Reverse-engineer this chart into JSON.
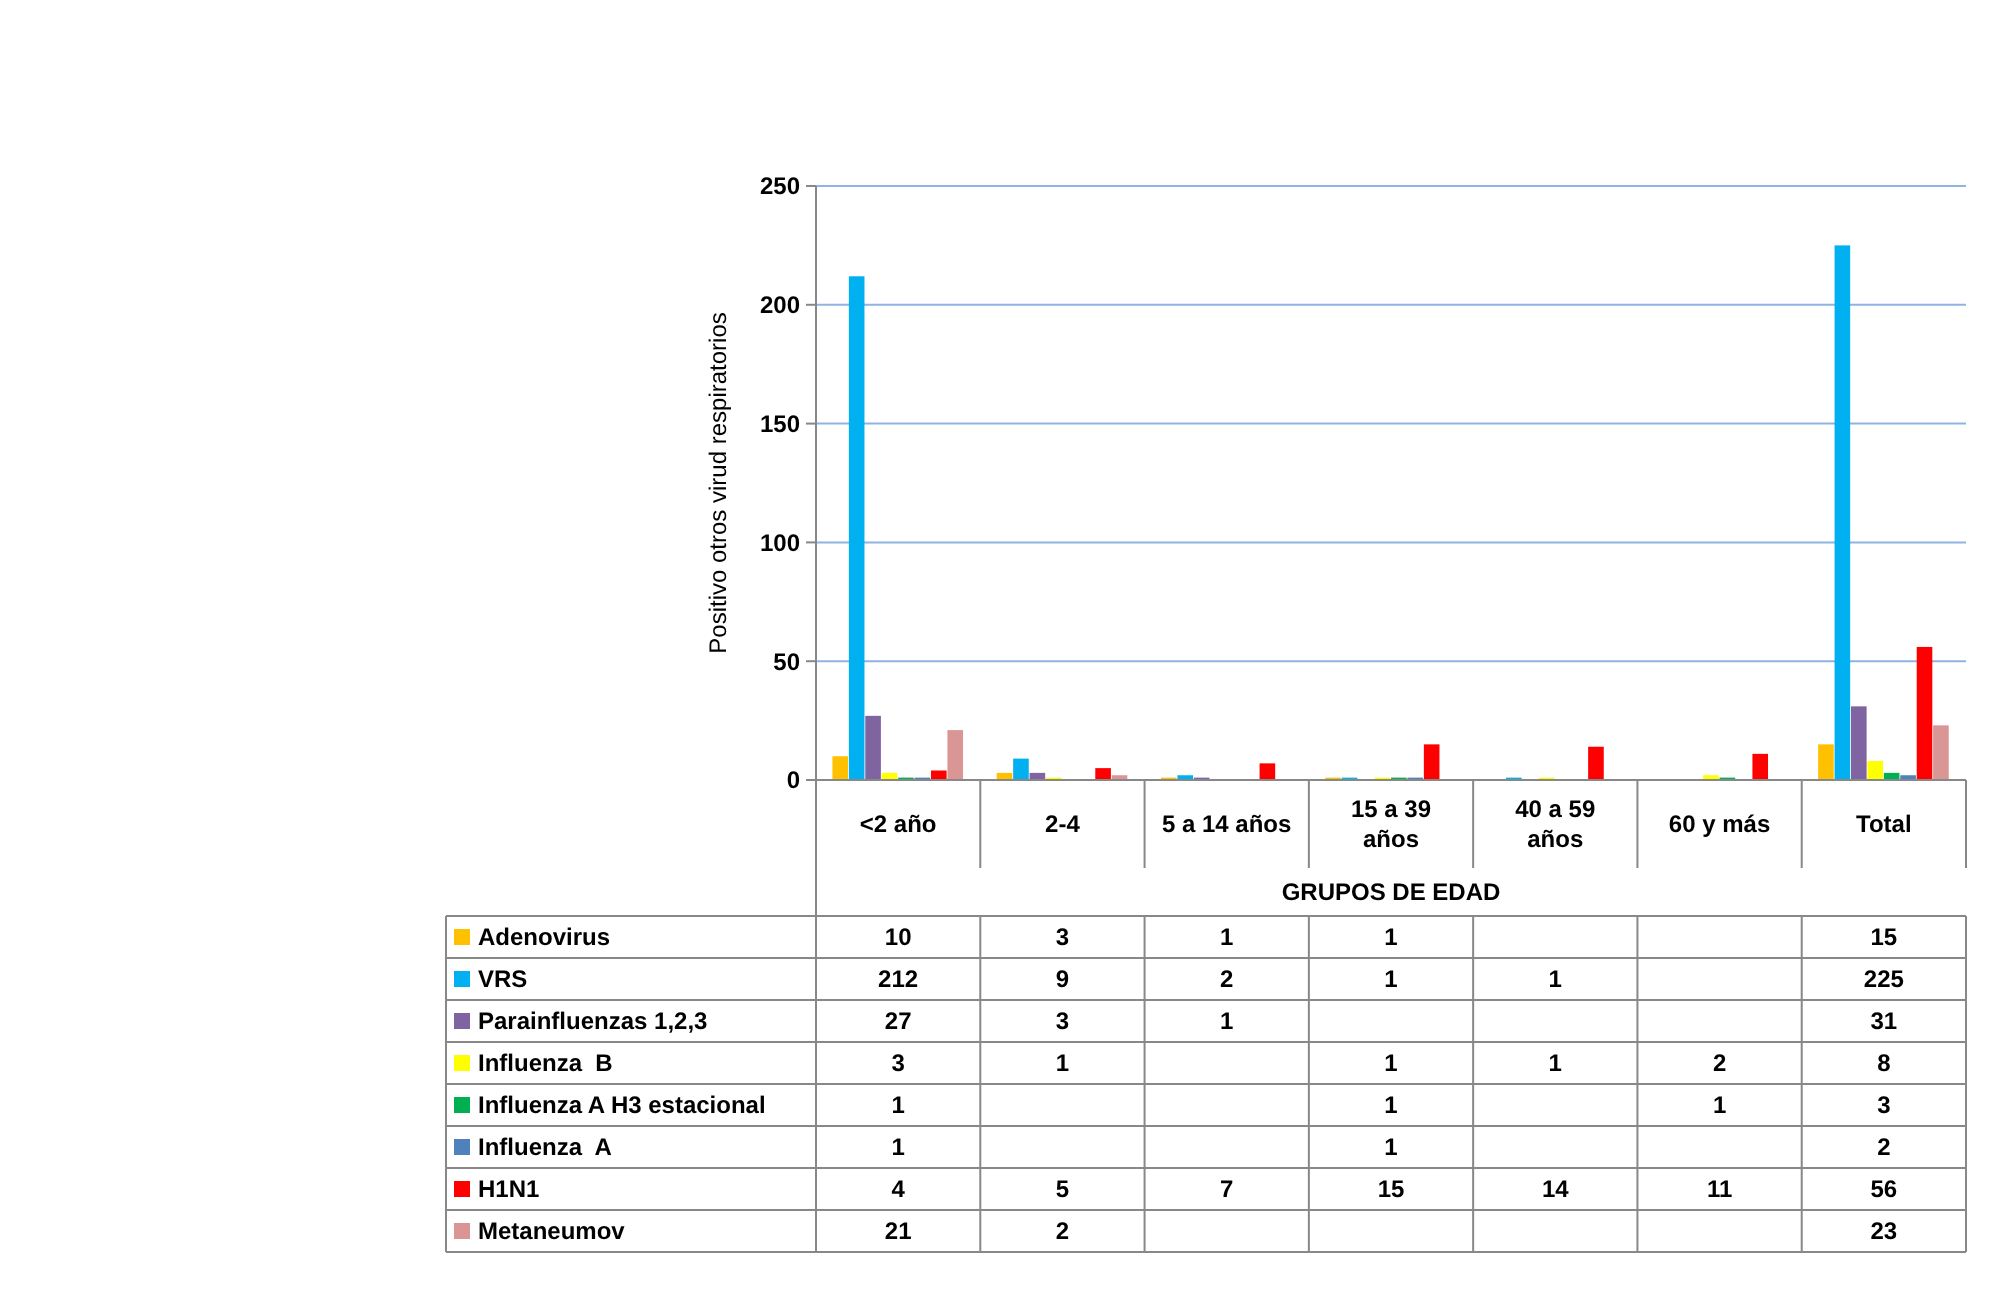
{
  "chart_data": {
    "type": "bar",
    "xlabel": "GRUPOS DE EDAD",
    "ylabel": "Positivo otros virud respiratorios",
    "categories": [
      "<2 año",
      "2-4",
      "5 a 14 años",
      "15 a 39 años",
      "40 a 59 años",
      "60 y más",
      "Total"
    ],
    "series": [
      {
        "name": "Adenovirus",
        "color": "#ffc000",
        "values": [
          10,
          3,
          1,
          1,
          null,
          null,
          15
        ]
      },
      {
        "name": "VRS",
        "color": "#00b0f0",
        "values": [
          212,
          9,
          2,
          1,
          1,
          null,
          225
        ]
      },
      {
        "name": "Parainfluenzas 1,2,3",
        "color": "#8064a2",
        "values": [
          27,
          3,
          1,
          null,
          null,
          null,
          31
        ]
      },
      {
        "name": "Influenza  B",
        "color": "#ffff00",
        "values": [
          3,
          1,
          null,
          1,
          1,
          2,
          8
        ]
      },
      {
        "name": "Influenza A H3 estacional",
        "color": "#00b050",
        "values": [
          1,
          null,
          null,
          1,
          null,
          1,
          3
        ]
      },
      {
        "name": "Influenza  A",
        "color": "#4f81bd",
        "values": [
          1,
          null,
          null,
          1,
          null,
          null,
          2
        ]
      },
      {
        "name": "H1N1",
        "color": "#ff0000",
        "values": [
          4,
          5,
          7,
          15,
          14,
          11,
          56
        ]
      },
      {
        "name": "Metaneumov",
        "color": "#d99694",
        "values": [
          21,
          2,
          null,
          null,
          null,
          null,
          23
        ]
      }
    ],
    "ylim": [
      0,
      250
    ],
    "yticks": [
      0,
      50,
      100,
      150,
      200,
      250
    ],
    "grid": "y",
    "legend": "bottom",
    "data_labels": true
  }
}
